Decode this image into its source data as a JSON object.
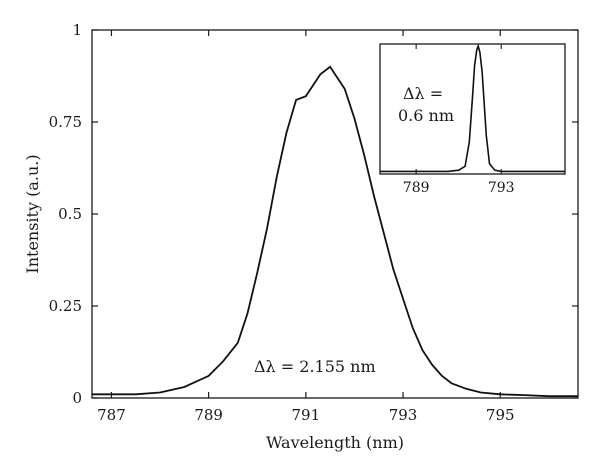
{
  "chart_data": [
    {
      "type": "line",
      "xlabel": "Wavelength (nm)",
      "ylabel": "Intensity (a.u.)",
      "xlim": [
        786.6,
        796.6
      ],
      "ylim": [
        0,
        1
      ],
      "xticks": [
        787,
        789,
        791,
        793,
        795
      ],
      "xtick_labels": [
        "787",
        "789",
        "791",
        "793",
        "795"
      ],
      "yticks": [
        0,
        0.25,
        0.5,
        0.75,
        1
      ],
      "ytick_labels": [
        "0",
        "0.25",
        "0.5",
        "0.75",
        "1"
      ],
      "grid": false,
      "annotation": "Δλ = 2.155 nm",
      "series": [
        {
          "x": [
            786.6,
            787.5,
            788.0,
            788.5,
            789.0,
            789.3,
            789.6,
            789.8,
            790.0,
            790.2,
            790.4,
            790.6,
            790.8,
            791.0,
            791.1,
            791.2,
            791.3,
            791.4,
            791.5,
            791.6,
            791.8,
            792.0,
            792.2,
            792.4,
            792.6,
            792.8,
            793.0,
            793.2,
            793.4,
            793.6,
            793.8,
            794.0,
            794.3,
            794.6,
            795.0,
            795.5,
            796.0,
            796.6
          ],
          "y": [
            0.01,
            0.01,
            0.015,
            0.03,
            0.06,
            0.1,
            0.15,
            0.23,
            0.34,
            0.46,
            0.6,
            0.72,
            0.81,
            0.82,
            0.84,
            0.86,
            0.88,
            0.89,
            0.9,
            0.88,
            0.84,
            0.76,
            0.66,
            0.55,
            0.45,
            0.35,
            0.27,
            0.19,
            0.13,
            0.09,
            0.06,
            0.04,
            0.025,
            0.015,
            0.01,
            0.008,
            0.005,
            0.005
          ]
        }
      ]
    },
    {
      "type": "line",
      "xlim": [
        787.3,
        796.0
      ],
      "ylim": [
        0,
        1
      ],
      "xticks": [
        789,
        793
      ],
      "xtick_labels": [
        "789",
        "793"
      ],
      "annotation_line1": "Δλ =",
      "annotation_line2": "0.6 nm",
      "series": [
        {
          "x": [
            787.3,
            789.0,
            790.5,
            791.0,
            791.3,
            791.5,
            791.65,
            791.75,
            791.85,
            791.92,
            792.0,
            792.1,
            792.2,
            792.3,
            792.45,
            792.7,
            793.0,
            794.5,
            796.0
          ],
          "y": [
            0.02,
            0.02,
            0.02,
            0.03,
            0.06,
            0.25,
            0.6,
            0.85,
            0.97,
            1.0,
            0.95,
            0.8,
            0.55,
            0.3,
            0.08,
            0.03,
            0.02,
            0.02,
            0.02
          ]
        }
      ]
    }
  ]
}
